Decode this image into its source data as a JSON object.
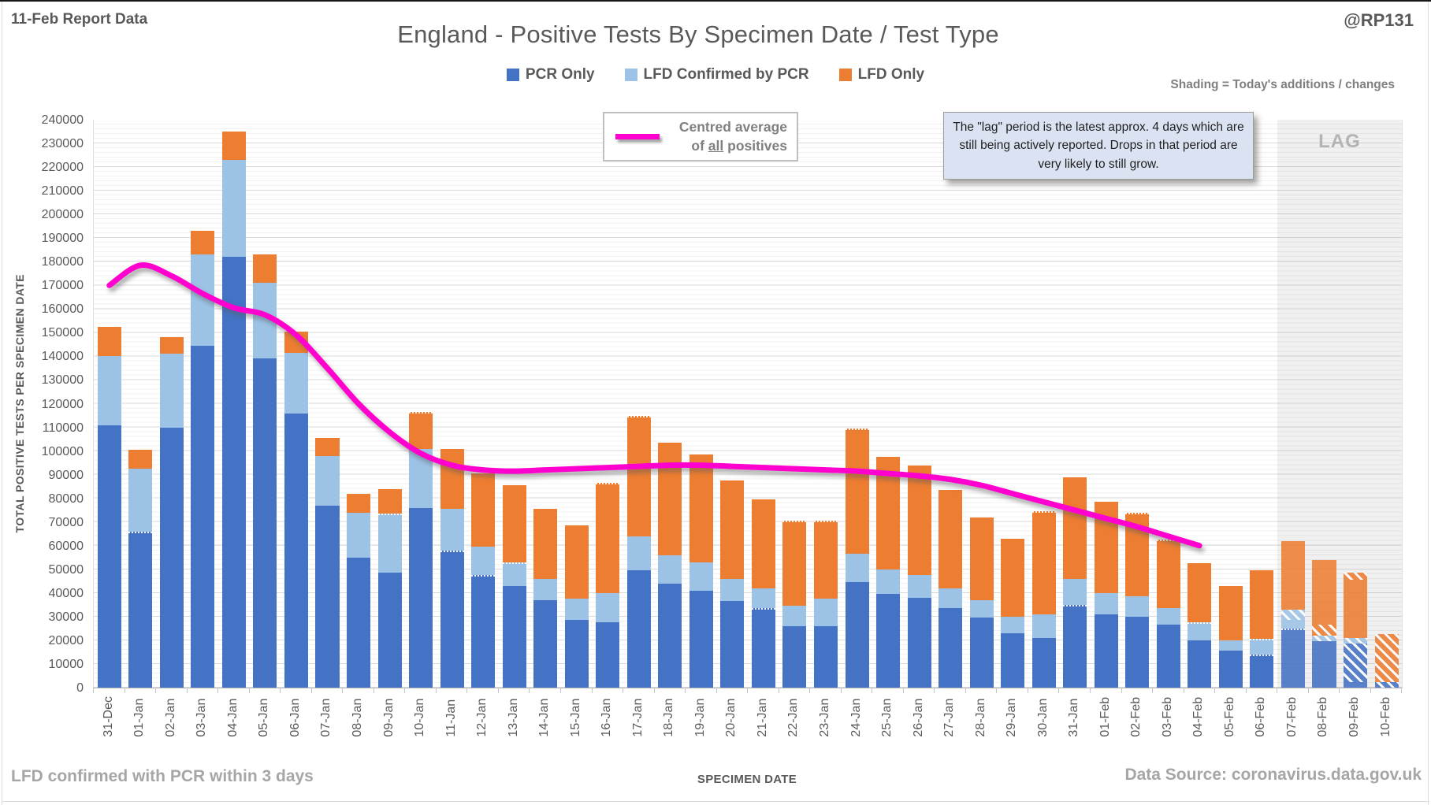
{
  "header": {
    "report_label": "11-Feb Report Data",
    "title": "England - Positive Tests By Specimen Date / Test Type",
    "handle": "@RP131",
    "shading_note": "Shading = Today's additions / changes"
  },
  "legend": [
    {
      "label": "PCR Only",
      "color": "#4472C4",
      "key": "pcr"
    },
    {
      "label": "LFD Confirmed by PCR",
      "color": "#9CC2E5",
      "key": "lfd_pcr"
    },
    {
      "label": "LFD Only",
      "color": "#ED7D31",
      "key": "lfd_only"
    }
  ],
  "avg_legend": {
    "line1": "Centred average",
    "line2_pre": "of ",
    "line2_underlined": "all",
    "line2_post": " positives"
  },
  "lag": {
    "label": "LAG",
    "note": "The \"lag\" period is the latest approx. 4 days which are still being actively reported.  Drops in that period are very likely to still grow.",
    "start_date": "07-Feb"
  },
  "axes": {
    "y_title": "TOTAL POSITIVE TESTS PER SPECIMEN DATE",
    "x_title": "SPECIMEN DATE",
    "y_max": 240000,
    "y_step": 10000,
    "y_minor_step": 2000
  },
  "footer": {
    "left": "LFD confirmed with PCR within 3 days",
    "right": "Data Source: coronavirus.data.gov.uk"
  },
  "colors": {
    "pcr": "#4472C4",
    "lfd_pcr": "#9CC2E5",
    "lfd_only": "#ED7D31",
    "line": "#FF00CE",
    "lag_band": "#e7e7e7",
    "text_dark": "#595959",
    "text_gray": "#7f7f7f",
    "text_light": "#a6a6a6"
  },
  "chart_data": {
    "type": "bar",
    "stacked": true,
    "grid": true,
    "ylim": [
      0,
      240000
    ],
    "legend_position": "top-center",
    "categories": [
      "31-Dec",
      "01-Jan",
      "02-Jan",
      "03-Jan",
      "04-Jan",
      "05-Jan",
      "06-Jan",
      "07-Jan",
      "08-Jan",
      "09-Jan",
      "10-Jan",
      "11-Jan",
      "12-Jan",
      "13-Jan",
      "14-Jan",
      "15-Jan",
      "16-Jan",
      "17-Jan",
      "18-Jan",
      "19-Jan",
      "20-Jan",
      "21-Jan",
      "22-Jan",
      "23-Jan",
      "24-Jan",
      "25-Jan",
      "26-Jan",
      "27-Jan",
      "28-Jan",
      "29-Jan",
      "30-Jan",
      "31-Jan",
      "01-Feb",
      "02-Feb",
      "03-Feb",
      "04-Feb",
      "05-Feb",
      "06-Feb",
      "07-Feb",
      "08-Feb",
      "09-Feb",
      "10-Feb"
    ],
    "bars": [
      {
        "date": "31-Dec",
        "segments": [
          {
            "p": "pcr",
            "v": 111000
          },
          {
            "p": "lfd_pcr",
            "v": 29000
          },
          {
            "p": "lfd_only",
            "v": 12500
          }
        ]
      },
      {
        "date": "01-Jan",
        "segments": [
          {
            "p": "pcr",
            "v": 66000,
            "d": true
          },
          {
            "p": "lfd_pcr",
            "v": 26500
          },
          {
            "p": "lfd_only",
            "v": 8000
          }
        ]
      },
      {
        "date": "02-Jan",
        "segments": [
          {
            "p": "pcr",
            "v": 110000
          },
          {
            "p": "lfd_pcr",
            "v": 31000
          },
          {
            "p": "lfd_only",
            "v": 7000
          }
        ]
      },
      {
        "date": "03-Jan",
        "segments": [
          {
            "p": "pcr",
            "v": 144500
          },
          {
            "p": "lfd_pcr",
            "v": 38500
          },
          {
            "p": "lfd_only",
            "v": 10000
          }
        ]
      },
      {
        "date": "04-Jan",
        "segments": [
          {
            "p": "pcr",
            "v": 182000
          },
          {
            "p": "lfd_pcr",
            "v": 41000
          },
          {
            "p": "lfd_only",
            "v": 12000
          }
        ]
      },
      {
        "date": "05-Jan",
        "segments": [
          {
            "p": "pcr",
            "v": 139000
          },
          {
            "p": "lfd_pcr",
            "v": 32000
          },
          {
            "p": "lfd_only",
            "v": 12000
          }
        ]
      },
      {
        "date": "06-Jan",
        "segments": [
          {
            "p": "pcr",
            "v": 116000
          },
          {
            "p": "lfd_pcr",
            "v": 25500
          },
          {
            "p": "lfd_only",
            "v": 9000
          }
        ]
      },
      {
        "date": "07-Jan",
        "segments": [
          {
            "p": "pcr",
            "v": 77000
          },
          {
            "p": "lfd_pcr",
            "v": 21000
          },
          {
            "p": "lfd_only",
            "v": 7500
          }
        ]
      },
      {
        "date": "08-Jan",
        "segments": [
          {
            "p": "pcr",
            "v": 55000
          },
          {
            "p": "lfd_pcr",
            "v": 19000
          },
          {
            "p": "lfd_only",
            "v": 8000
          }
        ]
      },
      {
        "date": "09-Jan",
        "segments": [
          {
            "p": "pcr",
            "v": 48500
          },
          {
            "p": "lfd_pcr",
            "v": 25000,
            "d": true
          },
          {
            "p": "lfd_only",
            "v": 10500
          }
        ]
      },
      {
        "date": "10-Jan",
        "segments": [
          {
            "p": "pcr",
            "v": 76000
          },
          {
            "p": "lfd_pcr",
            "v": 25000
          },
          {
            "p": "lfd_only",
            "v": 15500,
            "d": true
          }
        ]
      },
      {
        "date": "11-Jan",
        "segments": [
          {
            "p": "pcr",
            "v": 58000,
            "d": true
          },
          {
            "p": "lfd_pcr",
            "v": 17500
          },
          {
            "p": "lfd_only",
            "v": 25500
          }
        ]
      },
      {
        "date": "12-Jan",
        "segments": [
          {
            "p": "pcr",
            "v": 47500,
            "d": true
          },
          {
            "p": "lfd_pcr",
            "v": 12000
          },
          {
            "p": "lfd_only",
            "v": 31000
          }
        ]
      },
      {
        "date": "13-Jan",
        "segments": [
          {
            "p": "pcr",
            "v": 43000
          },
          {
            "p": "lfd_pcr",
            "v": 10000,
            "d": true
          },
          {
            "p": "lfd_only",
            "v": 32500
          }
        ]
      },
      {
        "date": "14-Jan",
        "segments": [
          {
            "p": "pcr",
            "v": 37000
          },
          {
            "p": "lfd_pcr",
            "v": 9000
          },
          {
            "p": "lfd_only",
            "v": 29500
          }
        ]
      },
      {
        "date": "15-Jan",
        "segments": [
          {
            "p": "pcr",
            "v": 28500
          },
          {
            "p": "lfd_pcr",
            "v": 9000
          },
          {
            "p": "lfd_only",
            "v": 31000
          }
        ]
      },
      {
        "date": "16-Jan",
        "segments": [
          {
            "p": "pcr",
            "v": 27500
          },
          {
            "p": "lfd_pcr",
            "v": 12500
          },
          {
            "p": "lfd_only",
            "v": 46500,
            "d": true
          }
        ]
      },
      {
        "date": "17-Jan",
        "segments": [
          {
            "p": "pcr",
            "v": 49500
          },
          {
            "p": "lfd_pcr",
            "v": 14500
          },
          {
            "p": "lfd_only",
            "v": 51000,
            "d": true
          }
        ]
      },
      {
        "date": "18-Jan",
        "segments": [
          {
            "p": "pcr",
            "v": 44000
          },
          {
            "p": "lfd_pcr",
            "v": 12000
          },
          {
            "p": "lfd_only",
            "v": 47500
          }
        ]
      },
      {
        "date": "19-Jan",
        "segments": [
          {
            "p": "pcr",
            "v": 41000
          },
          {
            "p": "lfd_pcr",
            "v": 12000
          },
          {
            "p": "lfd_only",
            "v": 45500
          }
        ]
      },
      {
        "date": "20-Jan",
        "segments": [
          {
            "p": "pcr",
            "v": 36500
          },
          {
            "p": "lfd_pcr",
            "v": 9500
          },
          {
            "p": "lfd_only",
            "v": 41500
          }
        ]
      },
      {
        "date": "21-Jan",
        "segments": [
          {
            "p": "pcr",
            "v": 33500,
            "d": true
          },
          {
            "p": "lfd_pcr",
            "v": 8500
          },
          {
            "p": "lfd_only",
            "v": 37500
          }
        ]
      },
      {
        "date": "22-Jan",
        "segments": [
          {
            "p": "pcr",
            "v": 26000
          },
          {
            "p": "lfd_pcr",
            "v": 8500
          },
          {
            "p": "lfd_only",
            "v": 36000,
            "d": true
          }
        ]
      },
      {
        "date": "23-Jan",
        "segments": [
          {
            "p": "pcr",
            "v": 26000
          },
          {
            "p": "lfd_pcr",
            "v": 11500
          },
          {
            "p": "lfd_only",
            "v": 33000,
            "d": true
          }
        ]
      },
      {
        "date": "24-Jan",
        "segments": [
          {
            "p": "pcr",
            "v": 44500
          },
          {
            "p": "lfd_pcr",
            "v": 12000
          },
          {
            "p": "lfd_only",
            "v": 53000,
            "d": true
          }
        ]
      },
      {
        "date": "25-Jan",
        "segments": [
          {
            "p": "pcr",
            "v": 39500
          },
          {
            "p": "lfd_pcr",
            "v": 10500
          },
          {
            "p": "lfd_only",
            "v": 47500
          }
        ]
      },
      {
        "date": "26-Jan",
        "segments": [
          {
            "p": "pcr",
            "v": 38000
          },
          {
            "p": "lfd_pcr",
            "v": 9500
          },
          {
            "p": "lfd_only",
            "v": 46500
          }
        ]
      },
      {
        "date": "27-Jan",
        "segments": [
          {
            "p": "pcr",
            "v": 33500
          },
          {
            "p": "lfd_pcr",
            "v": 8500
          },
          {
            "p": "lfd_only",
            "v": 41500
          }
        ]
      },
      {
        "date": "28-Jan",
        "segments": [
          {
            "p": "pcr",
            "v": 29500
          },
          {
            "p": "lfd_pcr",
            "v": 7500
          },
          {
            "p": "lfd_only",
            "v": 35000
          }
        ]
      },
      {
        "date": "29-Jan",
        "segments": [
          {
            "p": "pcr",
            "v": 23000
          },
          {
            "p": "lfd_pcr",
            "v": 7000
          },
          {
            "p": "lfd_only",
            "v": 33000
          }
        ]
      },
      {
        "date": "30-Jan",
        "segments": [
          {
            "p": "pcr",
            "v": 21000
          },
          {
            "p": "lfd_pcr",
            "v": 10000
          },
          {
            "p": "lfd_only",
            "v": 43500,
            "d": true
          }
        ]
      },
      {
        "date": "31-Jan",
        "segments": [
          {
            "p": "pcr",
            "v": 35000,
            "d": true
          },
          {
            "p": "lfd_pcr",
            "v": 11000
          },
          {
            "p": "lfd_only",
            "v": 43000
          }
        ]
      },
      {
        "date": "01-Feb",
        "segments": [
          {
            "p": "pcr",
            "v": 31000
          },
          {
            "p": "lfd_pcr",
            "v": 9000
          },
          {
            "p": "lfd_only",
            "v": 38500
          }
        ]
      },
      {
        "date": "02-Feb",
        "segments": [
          {
            "p": "pcr",
            "v": 30000
          },
          {
            "p": "lfd_pcr",
            "v": 8500
          },
          {
            "p": "lfd_only",
            "v": 35500,
            "d": true
          }
        ]
      },
      {
        "date": "03-Feb",
        "segments": [
          {
            "p": "pcr",
            "v": 26500
          },
          {
            "p": "lfd_pcr",
            "v": 7000
          },
          {
            "p": "lfd_only",
            "v": 29000,
            "d": true
          }
        ]
      },
      {
        "date": "04-Feb",
        "segments": [
          {
            "p": "pcr",
            "v": 20000
          },
          {
            "p": "lfd_pcr",
            "v": 7500,
            "d": true
          },
          {
            "p": "lfd_only",
            "v": 25000
          }
        ]
      },
      {
        "date": "05-Feb",
        "segments": [
          {
            "p": "pcr",
            "v": 15500
          },
          {
            "p": "lfd_pcr",
            "v": 4500
          },
          {
            "p": "lfd_only",
            "v": 23000
          }
        ]
      },
      {
        "date": "06-Feb",
        "segments": [
          {
            "p": "pcr",
            "v": 14000,
            "d": true
          },
          {
            "p": "lfd_pcr",
            "v": 6500,
            "d": true
          },
          {
            "p": "lfd_only",
            "v": 29000
          }
        ]
      },
      {
        "date": "07-Feb",
        "segments": [
          {
            "p": "pcr",
            "v": 25000,
            "d": true
          },
          {
            "p": "lfd_pcr",
            "v": 3500
          },
          {
            "p": "lfd_pcr",
            "v": 4500,
            "h": true
          },
          {
            "p": "lfd_only",
            "v": 29000
          }
        ]
      },
      {
        "date": "08-Feb",
        "segments": [
          {
            "p": "pcr",
            "v": 19500
          },
          {
            "p": "lfd_pcr",
            "v": 2500,
            "h": true
          },
          {
            "p": "lfd_only",
            "v": 4500,
            "h": true
          },
          {
            "p": "lfd_only",
            "v": 27500
          }
        ]
      },
      {
        "date": "09-Feb",
        "segments": [
          {
            "p": "pcr",
            "v": 2500
          },
          {
            "p": "pcr",
            "v": 16000,
            "h": true
          },
          {
            "p": "lfd_pcr",
            "v": 2500,
            "h": true
          },
          {
            "p": "lfd_only",
            "v": 24500
          },
          {
            "p": "lfd_only",
            "v": 3000,
            "h": true
          }
        ]
      },
      {
        "date": "10-Feb",
        "segments": [
          {
            "p": "pcr",
            "v": 2500,
            "h": true
          },
          {
            "p": "lfd_only",
            "v": 20000,
            "h": true
          }
        ]
      }
    ],
    "line": {
      "name": "Centred average of all positives",
      "color": "#FF00CE",
      "start": "31-Dec",
      "end": "04-Feb",
      "values": [
        170000,
        178500,
        174000,
        166500,
        160500,
        157500,
        149000,
        135000,
        120000,
        108000,
        99000,
        94000,
        92000,
        91500,
        92000,
        92500,
        93000,
        93500,
        94000,
        94000,
        93500,
        93000,
        92500,
        92000,
        91500,
        90500,
        89500,
        88000,
        85500,
        82000,
        78500,
        75000,
        71500,
        68000,
        64000,
        60000
      ]
    }
  }
}
